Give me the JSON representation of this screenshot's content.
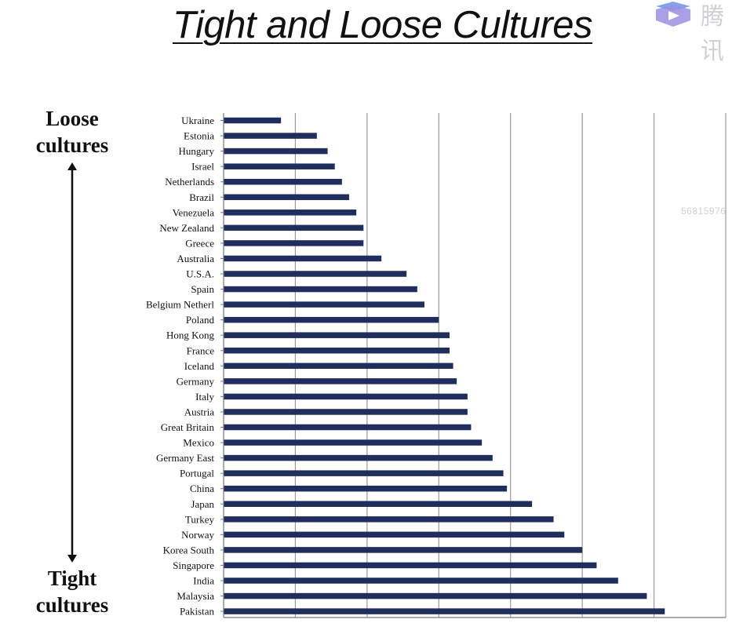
{
  "slide": {
    "title": "Tight and Loose Cultures",
    "top_label_line1": "Loose",
    "top_label_line2": "cultures",
    "bottom_label_line1": "Tight",
    "bottom_label_line2": "cultures",
    "watermark": "56815976",
    "logo_text": "腾讯"
  },
  "chart_data": {
    "type": "bar",
    "orientation": "horizontal",
    "title": "",
    "xlabel": "",
    "ylabel": "",
    "xlim": [
      0,
      14
    ],
    "grid": "vertical",
    "categories": [
      "Ukraine",
      "Estonia",
      "Hungary",
      "Israel",
      "Netherlands",
      "Brazil",
      "Venezuela",
      "New Zealand",
      "Greece",
      "Australia",
      "U.S.A.",
      "Spain",
      "Belgium Netherl",
      "Poland",
      "Hong Kong",
      "France",
      "Iceland",
      "Germany",
      "Italy",
      "Austria",
      "Great Britain",
      "Mexico",
      "Germany East",
      "Portugal",
      "China",
      "Japan",
      "Turkey",
      "Norway",
      "Korea South",
      "Singapore",
      "India",
      "Malaysia",
      "Pakistan"
    ],
    "values": [
      1.6,
      2.6,
      2.9,
      3.1,
      3.3,
      3.5,
      3.7,
      3.9,
      3.9,
      4.4,
      5.1,
      5.4,
      5.6,
      6.0,
      6.3,
      6.3,
      6.4,
      6.5,
      6.8,
      6.8,
      6.9,
      7.2,
      7.5,
      7.8,
      7.9,
      8.6,
      9.2,
      9.5,
      10.0,
      10.4,
      11.0,
      11.8,
      12.3
    ],
    "bar_color": "#1f2e5c"
  }
}
